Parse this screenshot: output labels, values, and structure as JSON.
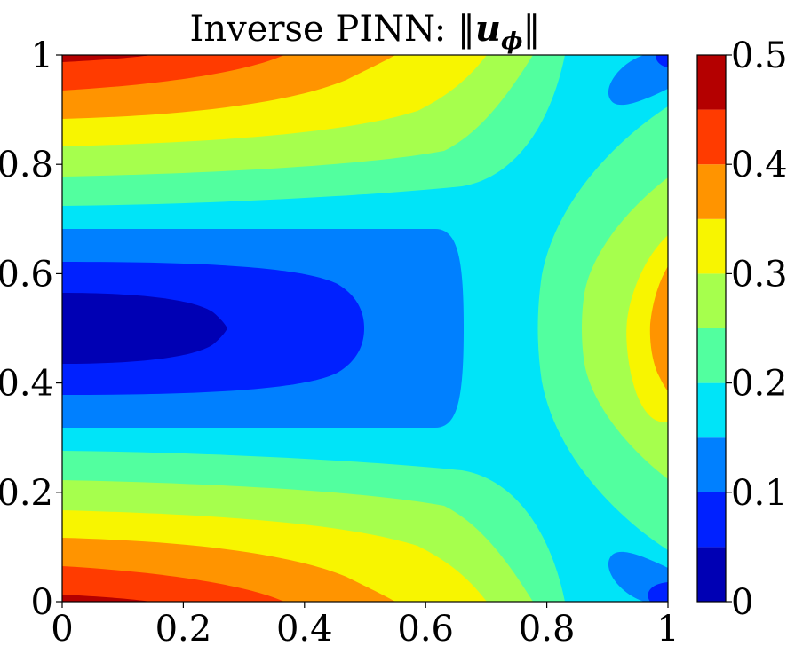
{
  "chart_data": {
    "type": "heatmap",
    "subtype": "filled-contour",
    "title_prefix": "Inverse PINN: ",
    "title_math": "‖u_ϕ‖",
    "title_bar": "‖",
    "title_u": "u",
    "title_sub": "ϕ",
    "xlabel": "",
    "ylabel": "",
    "xlim": [
      0,
      1
    ],
    "ylim": [
      0,
      1
    ],
    "x_ticks": [
      "0",
      "0.2",
      "0.4",
      "0.6",
      "0.8",
      "1"
    ],
    "y_ticks": [
      "0",
      "0.2",
      "0.4",
      "0.6",
      "0.8",
      "1"
    ],
    "colorbar": {
      "range": [
        0,
        0.5
      ],
      "ticks": [
        "0",
        "0.1",
        "0.2",
        "0.3",
        "0.4",
        "0.5"
      ],
      "levels": [
        0,
        0.05,
        0.1,
        0.15,
        0.2,
        0.25,
        0.3,
        0.35,
        0.4,
        0.45,
        0.5
      ],
      "colors": [
        "#0000b4",
        "#0021ff",
        "#0080ff",
        "#00e4f8",
        "#52ff9f",
        "#a6ff4d",
        "#f8f500",
        "#ff9400",
        "#ff3b00",
        "#b40000"
      ],
      "colormap": "jet"
    },
    "field": {
      "symmetry": "symmetric about y = 0.5",
      "minimum": {
        "x": 0,
        "y": 0.5,
        "value": 0.02
      },
      "maxima": [
        {
          "x": 0,
          "y": 0,
          "value": 0.47
        },
        {
          "x": 0,
          "y": 1,
          "value": 0.47
        }
      ],
      "right_edge_center": {
        "x": 1,
        "y": 0.5,
        "value": 0.38
      },
      "right_corners": {
        "value": 0.08
      },
      "left_edge_profile": [
        {
          "y": 0.0,
          "value": 0.47
        },
        {
          "y": 0.1,
          "value": 0.36
        },
        {
          "y": 0.2,
          "value": 0.26
        },
        {
          "y": 0.3,
          "value": 0.17
        },
        {
          "y": 0.4,
          "value": 0.1
        },
        {
          "y": 0.5,
          "value": 0.02
        }
      ],
      "midline_profile_y_0.5": [
        {
          "x": 0.0,
          "value": 0.02
        },
        {
          "x": 0.27,
          "value": 0.05
        },
        {
          "x": 0.49,
          "value": 0.1
        },
        {
          "x": 0.66,
          "value": 0.15
        },
        {
          "x": 0.78,
          "value": 0.2
        },
        {
          "x": 0.84,
          "value": 0.25
        },
        {
          "x": 0.91,
          "value": 0.3
        },
        {
          "x": 0.97,
          "value": 0.35
        },
        {
          "x": 1.0,
          "value": 0.38
        }
      ]
    }
  }
}
